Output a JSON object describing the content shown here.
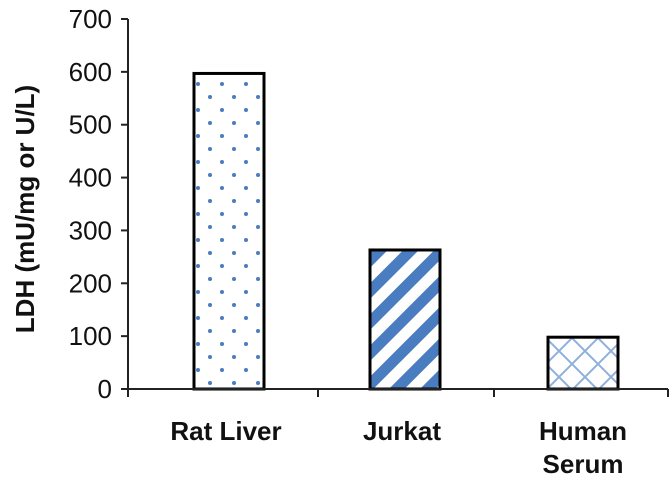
{
  "chart_data": {
    "type": "bar",
    "categories": [
      "Rat Liver",
      "Jurkat",
      "Human Serum"
    ],
    "category_lines": [
      [
        "Rat Liver"
      ],
      [
        "Jurkat"
      ],
      [
        "Human",
        "Serum"
      ]
    ],
    "values": [
      597,
      263,
      98
    ],
    "ylabel": "LDH (mU/mg or U/L)",
    "ylim": [
      0,
      700
    ],
    "yticks": [
      0,
      100,
      200,
      300,
      400,
      500,
      600,
      700
    ],
    "grid": false,
    "bar_patterns": [
      "dots",
      "diagonal-stripes",
      "crosshatch"
    ],
    "colors": {
      "pattern": "#4a7cc0",
      "outline": "#000000",
      "axis": "#222222"
    }
  }
}
